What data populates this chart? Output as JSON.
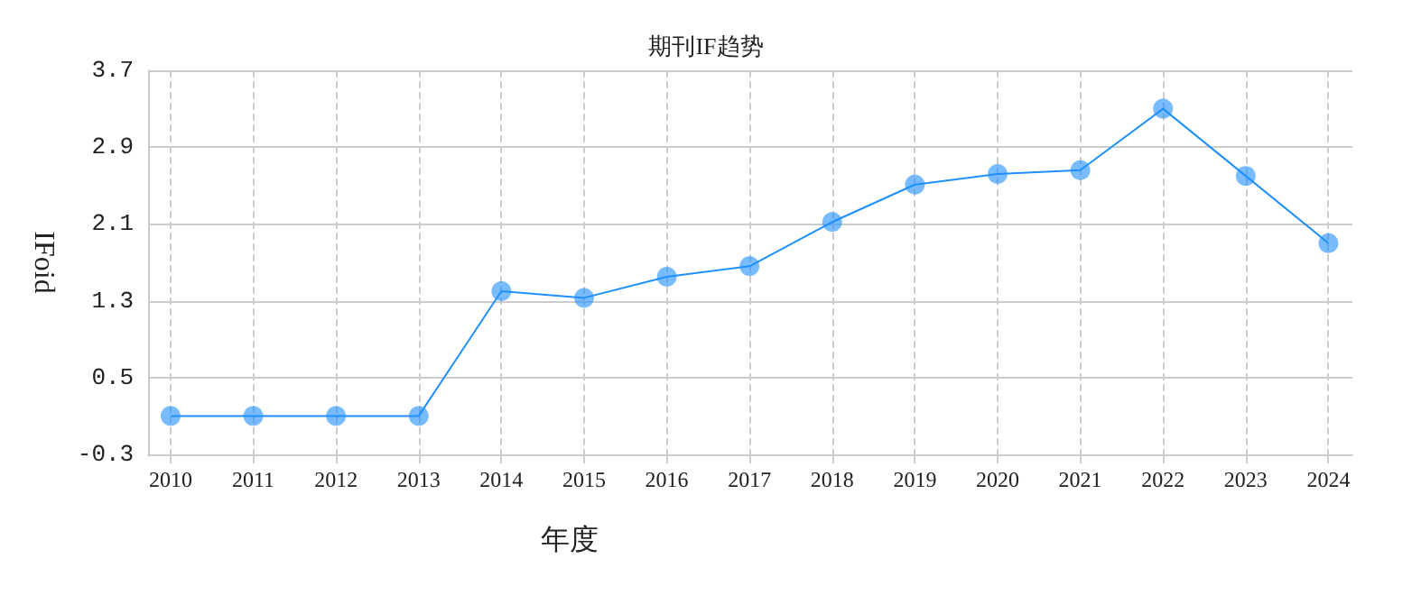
{
  "chart_data": {
    "type": "line",
    "title": "期刊IF趋势",
    "xlabel": "年度",
    "ylabel": "IFoid",
    "x": [
      2010,
      2011,
      2012,
      2013,
      2014,
      2015,
      2016,
      2017,
      2018,
      2019,
      2020,
      2021,
      2022,
      2023,
      2024
    ],
    "series": [
      {
        "color": "#1e90ff",
        "values": [
          0.1,
          0.1,
          0.1,
          0.1,
          1.4,
          1.33,
          1.55,
          1.66,
          2.12,
          2.51,
          2.62,
          2.66,
          3.3,
          2.6,
          1.9
        ]
      }
    ],
    "xlim": [
      2009.73,
      2024.29
    ],
    "xticks": [
      2010,
      2011,
      2012,
      2013,
      2014,
      2015,
      2016,
      2017,
      2018,
      2019,
      2020,
      2021,
      2022,
      2023,
      2024
    ],
    "ylim": [
      -0.3,
      3.7
    ],
    "yticks": [
      -0.3,
      0.5,
      1.3,
      2.1,
      2.9,
      3.7
    ],
    "grid": true,
    "marker": "circle",
    "line_style": "solid"
  }
}
